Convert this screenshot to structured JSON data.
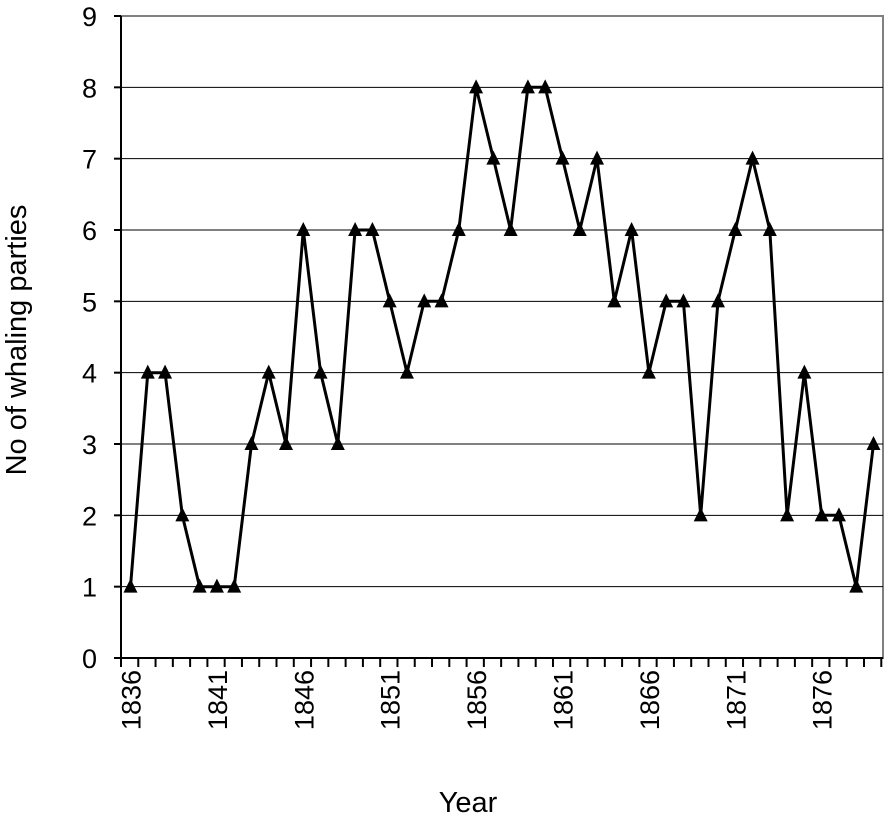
{
  "chart_data": {
    "type": "line",
    "title": "",
    "xlabel": "Year",
    "ylabel": "No of whaling parties",
    "ylim": [
      0,
      9
    ],
    "y_ticks": [
      0,
      1,
      2,
      3,
      4,
      5,
      6,
      7,
      8,
      9
    ],
    "x_tick_labels": [
      "1836",
      "1841",
      "1846",
      "1851",
      "1856",
      "1861",
      "1866",
      "1871",
      "1876"
    ],
    "grid": "horizontal",
    "marker": "triangle",
    "line_color": "#000000",
    "series": [
      {
        "x": [
          1836,
          1837,
          1838,
          1839,
          1840,
          1841,
          1842,
          1843,
          1844,
          1845,
          1846,
          1847,
          1848,
          1849,
          1850,
          1851,
          1852,
          1853,
          1854,
          1855,
          1856,
          1857,
          1858,
          1859,
          1860,
          1861,
          1862,
          1863,
          1864,
          1865,
          1866,
          1867,
          1868,
          1869,
          1870,
          1871,
          1872,
          1873,
          1874,
          1875,
          1876,
          1877,
          1878,
          1879
        ],
        "values": [
          1,
          4,
          4,
          2,
          1,
          1,
          1,
          3,
          4,
          3,
          6,
          4,
          3,
          6,
          6,
          5,
          4,
          5,
          5,
          6,
          8,
          7,
          6,
          8,
          8,
          7,
          6,
          7,
          5,
          6,
          4,
          5,
          5,
          2,
          5,
          6,
          7,
          6,
          2,
          4,
          2,
          2,
          1,
          3
        ]
      }
    ]
  }
}
